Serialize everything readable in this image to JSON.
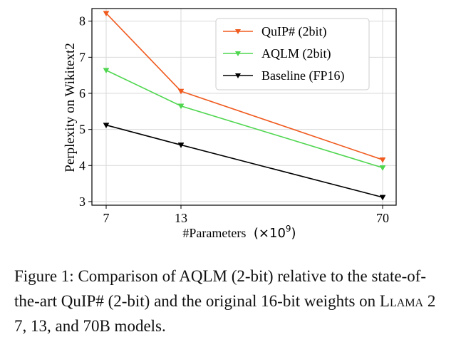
{
  "chart_data": {
    "type": "line",
    "x": [
      7,
      13,
      70
    ],
    "x_tick_labels": [
      "7",
      "13",
      "70"
    ],
    "y_ticks": [
      3,
      4,
      5,
      6,
      7,
      8
    ],
    "ylim": [
      2.9,
      8.35
    ],
    "xlabel": "#Parameters",
    "xlabel_multiplier": "(×10",
    "xlabel_exponent": "9",
    "xlabel_close": ")",
    "ylabel": "Perplexity on Wikitext2",
    "grid": true,
    "legend_position": "top-right",
    "series": [
      {
        "name": "QuIP# (2bit)",
        "color": "#f05a1e",
        "values": [
          8.22,
          6.06,
          4.16
        ]
      },
      {
        "name": "AQLM (2bit)",
        "color": "#4fd64f",
        "values": [
          6.64,
          5.65,
          3.94
        ]
      },
      {
        "name": "Baseline (FP16)",
        "color": "#000000",
        "values": [
          5.12,
          4.57,
          3.12
        ]
      }
    ]
  },
  "caption": {
    "part1": "Figure 1: Comparison of AQLM (2-bit) relative to the state-of-the-art QuIP# (2-bit) and the original 16-bit weights on ",
    "model_initial": "L",
    "model_rest": "lama",
    "part2": " 2 7, 13, and 70B models."
  }
}
